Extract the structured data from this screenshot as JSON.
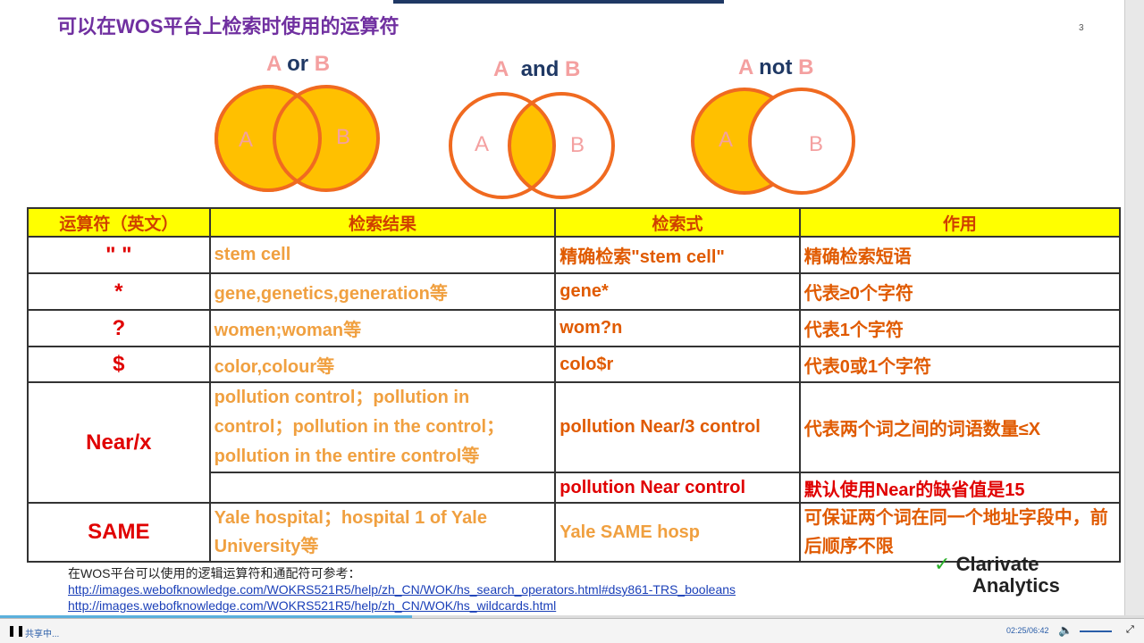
{
  "slide": {
    "title": "可以在WOS平台上检索时使用的运算符",
    "page_number": "3"
  },
  "venn": [
    {
      "a": "A",
      "op": "or",
      "b": "B",
      "label_a": "A",
      "label_b": "B"
    },
    {
      "a": "A",
      "op": "and",
      "b": "B",
      "label_a": "A",
      "label_b": "B"
    },
    {
      "a": "A",
      "op": "not",
      "b": "B",
      "label_a": "A",
      "label_b": "B"
    }
  ],
  "table": {
    "headers": [
      "运算符（英文）",
      "检索结果",
      "检索式",
      "作用"
    ],
    "rows": [
      {
        "op": "\"   \"",
        "result": "stem cell",
        "query": "精确检索\"stem cell\"",
        "function": "精确检索短语"
      },
      {
        "op": "*",
        "result": "gene,genetics,generation等",
        "query": "gene*",
        "function": "代表≥0个字符"
      },
      {
        "op": "?",
        "result": "women;woman等",
        "query": "wom?n",
        "function": "代表1个字符"
      },
      {
        "op": "$",
        "result": "color,colour等",
        "query": "colo$r",
        "function": "代表0或1个字符"
      },
      {
        "op": "Near/x",
        "result": "pollution control；pollution in control；pollution in the control；pollution in the entire control等",
        "query": "pollution Near/3 control",
        "function": "代表两个词之间的词语数量≤X"
      },
      {
        "op": "",
        "result": "",
        "query": "pollution Near control",
        "function": "默认使用Near的缺省值是15"
      },
      {
        "op": "SAME",
        "result": "Yale hospital；hospital 1 of Yale University等",
        "query": "Yale SAME hosp",
        "function": "可保证两个词在同一个地址字段中，前后顺序不限"
      }
    ]
  },
  "references": {
    "intro": "在WOS平台可以使用的逻辑运算符和通配符可参考：",
    "links": [
      "http://images.webofknowledge.com/WOKRS521R5/help/zh_CN/WOK/hs_search_operators.html#dsy861-TRS_booleans",
      "http://images.webofknowledge.com/WOKRS521R5/help/zh_CN/WOK/hs_wildcards.html"
    ]
  },
  "logo": {
    "line1": "Clarivate",
    "line2": "Analytics"
  },
  "player": {
    "status": "共享中...",
    "time": "02:25/06:42",
    "progress": 0.36,
    "volume": 0.7
  },
  "colors": {
    "title": "#7030a0",
    "header_bg": "#ffff00",
    "circle": "#f06a20",
    "fill": "#ffc000"
  }
}
